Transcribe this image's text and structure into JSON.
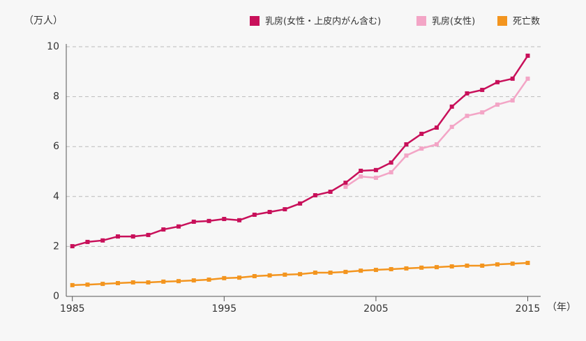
{
  "chart_data": {
    "type": "line",
    "y_label": "（万人）",
    "x_label": "（年）",
    "xlim": [
      1984.6,
      2015.85
    ],
    "xticks": [
      1985,
      1995,
      2005,
      2015
    ],
    "ylim": [
      0,
      10
    ],
    "yticks": [
      0,
      2,
      4,
      6,
      8,
      10
    ],
    "grid": true,
    "legend": "top-right",
    "series": [
      {
        "name": "乳房(女性・上皮内がん含む)",
        "color": "#c8105a",
        "x": [
          1985,
          1986,
          1987,
          1988,
          1989,
          1990,
          1991,
          1992,
          1993,
          1994,
          1995,
          1996,
          1997,
          1998,
          1999,
          2000,
          2001,
          2002,
          2003,
          2004,
          2005,
          2006,
          2007,
          2008,
          2009,
          2010,
          2011,
          2012,
          2013,
          2014,
          2015
        ],
        "values": [
          2.01,
          2.18,
          2.24,
          2.4,
          2.4,
          2.46,
          2.68,
          2.8,
          2.99,
          3.02,
          3.1,
          3.05,
          3.27,
          3.38,
          3.49,
          3.72,
          4.05,
          4.19,
          4.55,
          5.03,
          5.06,
          5.36,
          6.09,
          6.51,
          6.76,
          7.6,
          8.13,
          8.27,
          8.58,
          8.72,
          9.64
        ]
      },
      {
        "name": "乳房(女性)",
        "color": "#f3a5c6",
        "x": [
          2003,
          2004,
          2005,
          2006,
          2007,
          2008,
          2009,
          2010,
          2011,
          2012,
          2013,
          2014,
          2015
        ],
        "values": [
          4.39,
          4.8,
          4.75,
          4.97,
          5.64,
          5.92,
          6.09,
          6.79,
          7.23,
          7.37,
          7.68,
          7.85,
          8.72
        ]
      },
      {
        "name": "死亡数",
        "color": "#f3951f",
        "x": [
          1985,
          1986,
          1987,
          1988,
          1989,
          1990,
          1991,
          1992,
          1993,
          1994,
          1995,
          1996,
          1997,
          1998,
          1999,
          2000,
          2001,
          2002,
          2003,
          2004,
          2005,
          2006,
          2007,
          2008,
          2009,
          2010,
          2011,
          2012,
          2013,
          2014,
          2015
        ],
        "values": [
          0.45,
          0.47,
          0.5,
          0.53,
          0.56,
          0.56,
          0.59,
          0.61,
          0.64,
          0.67,
          0.73,
          0.75,
          0.81,
          0.84,
          0.87,
          0.89,
          0.95,
          0.95,
          0.98,
          1.03,
          1.06,
          1.09,
          1.12,
          1.15,
          1.17,
          1.2,
          1.23,
          1.23,
          1.28,
          1.31,
          1.34
        ]
      }
    ]
  }
}
